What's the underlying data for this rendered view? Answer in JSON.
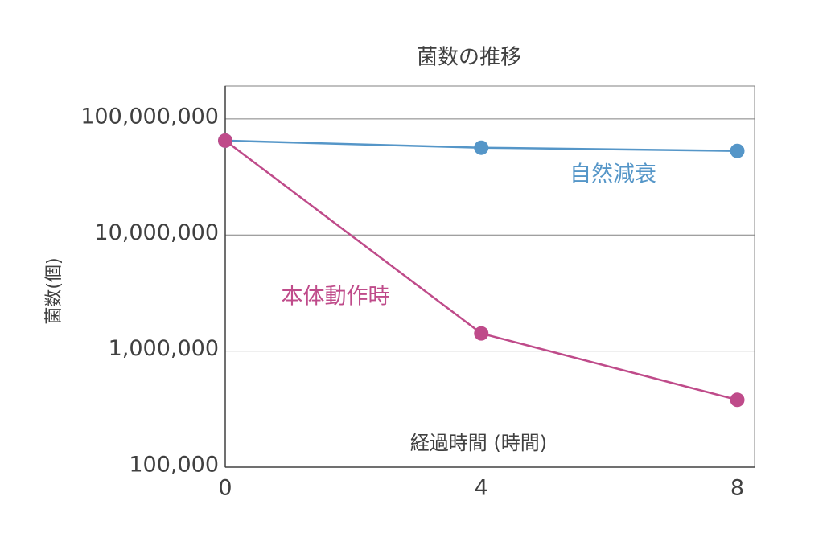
{
  "chart_data": {
    "type": "line",
    "title": "菌数の推移",
    "x_label": "経過時間 (時間)",
    "y_label": "菌数(個)",
    "x": [
      0,
      4,
      8
    ],
    "series": [
      {
        "name": "自然減衰",
        "color": "#5596c8",
        "values": [
          65000000,
          56500000,
          53000000
        ]
      },
      {
        "name": "本体動作時",
        "color": "#bf4b8a",
        "values": [
          65000000,
          1420000,
          380000
        ]
      }
    ],
    "xlim": [
      0,
      8.27
    ],
    "xticks": [
      0,
      4,
      8
    ],
    "ylim": [
      100000,
      192000000
    ],
    "log_y": true,
    "yticks": [
      {
        "value": 100000,
        "label": "100,000"
      },
      {
        "value": 1000000,
        "label": "1,000,000"
      },
      {
        "value": 10000000,
        "label": "10,000,000"
      },
      {
        "value": 100000000,
        "label": "100,000,000"
      }
    ],
    "grid": true
  }
}
